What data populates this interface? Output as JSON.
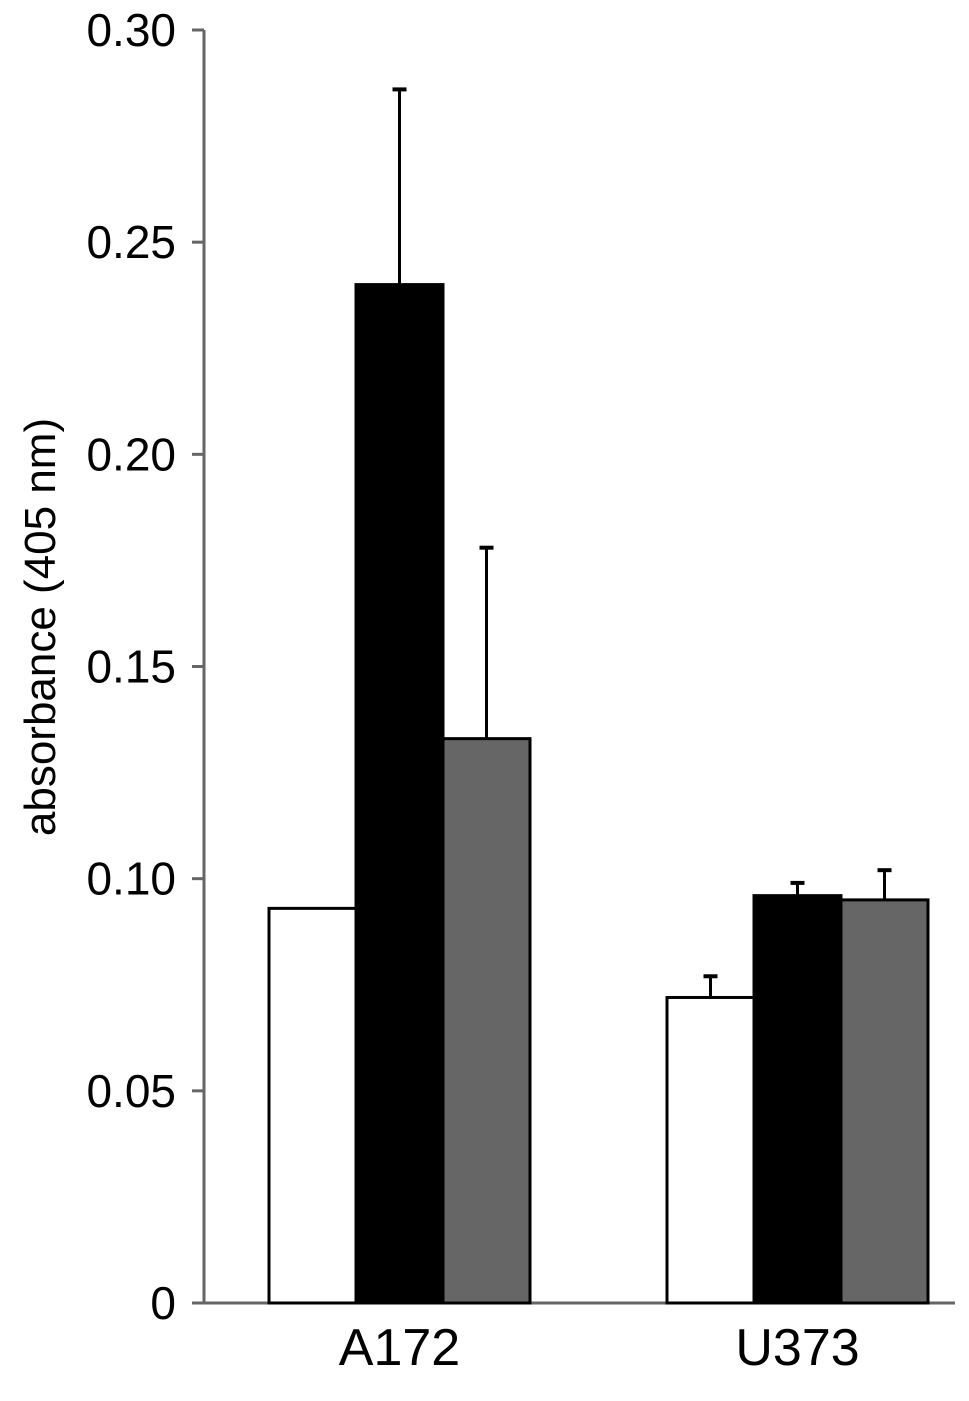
{
  "chart_data": {
    "type": "bar",
    "title": "",
    "xlabel": "",
    "ylabel": "absorbance (405 nm)",
    "ylim": [
      0,
      0.3
    ],
    "yticks": [
      "0",
      "0.05",
      "0.10",
      "0.15",
      "0.20",
      "0.25",
      "0.30"
    ],
    "ytick_values": [
      0,
      0.05,
      0.1,
      0.15,
      0.2,
      0.25,
      0.3
    ],
    "grid": false,
    "legend": "none",
    "categories": [
      "A172",
      "U373"
    ],
    "series": [
      {
        "color": "#ffffff",
        "values": [
          0.093,
          0.072
        ],
        "errors": [
          0.0,
          0.005
        ]
      },
      {
        "color": "#000000",
        "values": [
          0.24,
          0.096
        ],
        "errors": [
          0.046,
          0.003
        ]
      },
      {
        "color": "#666666",
        "values": [
          0.133,
          0.095
        ],
        "errors": [
          0.045,
          0.007
        ]
      }
    ]
  }
}
